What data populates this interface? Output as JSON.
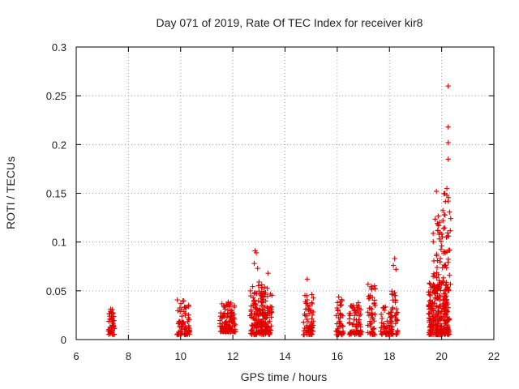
{
  "chart_data": {
    "type": "scatter",
    "title": "Day 071 of 2019, Rate Of TEC Index for receiver kir8",
    "xlabel": "GPS time / hours",
    "ylabel": "ROTI / TECUs",
    "xlim": [
      6,
      22
    ],
    "ylim": [
      0,
      0.3
    ],
    "xticks": [
      "6",
      "8",
      "10",
      "12",
      "14",
      "16",
      "18",
      "20",
      "22"
    ],
    "yticks": [
      "0",
      "0.05",
      "0.1",
      "0.15",
      "0.2",
      "0.25",
      "0.3"
    ],
    "xtick_values": [
      6,
      8,
      10,
      12,
      14,
      16,
      18,
      20,
      22
    ],
    "ytick_values": [
      0,
      0.05,
      0.1,
      0.15,
      0.2,
      0.25,
      0.3
    ],
    "grid": true,
    "marker": "plus",
    "series_color": "#e00000",
    "clusters": [
      {
        "x_center": 7.35,
        "x_spread": 0.12,
        "y_min": 0.005,
        "y_max": 0.032,
        "count": 45
      },
      {
        "x_center": 10.1,
        "x_spread": 0.25,
        "y_min": 0.005,
        "y_max": 0.045,
        "count": 70
      },
      {
        "x_center": 11.8,
        "x_spread": 0.3,
        "y_min": 0.008,
        "y_max": 0.04,
        "count": 120
      },
      {
        "x_center": 12.9,
        "x_spread": 0.25,
        "y_min": 0.005,
        "y_max": 0.06,
        "count": 120
      },
      {
        "x_center": 13.3,
        "x_spread": 0.2,
        "y_min": 0.005,
        "y_max": 0.055,
        "count": 90
      },
      {
        "x_center": 14.9,
        "x_spread": 0.2,
        "y_min": 0.005,
        "y_max": 0.048,
        "count": 70
      },
      {
        "x_center": 16.1,
        "x_spread": 0.15,
        "y_min": 0.005,
        "y_max": 0.045,
        "count": 50
      },
      {
        "x_center": 16.7,
        "x_spread": 0.25,
        "y_min": 0.005,
        "y_max": 0.038,
        "count": 70
      },
      {
        "x_center": 17.3,
        "x_spread": 0.15,
        "y_min": 0.005,
        "y_max": 0.058,
        "count": 50
      },
      {
        "x_center": 17.9,
        "x_spread": 0.25,
        "y_min": 0.005,
        "y_max": 0.035,
        "count": 60
      },
      {
        "x_center": 18.2,
        "x_spread": 0.12,
        "y_min": 0.005,
        "y_max": 0.05,
        "count": 30
      },
      {
        "x_center": 19.9,
        "x_spread": 0.4,
        "y_min": 0.005,
        "y_max": 0.06,
        "count": 260
      },
      {
        "x_center": 20.0,
        "x_spread": 0.35,
        "y_min": 0.05,
        "y_max": 0.15,
        "count": 80
      }
    ],
    "outliers": [
      [
        12.85,
        0.091
      ],
      [
        12.9,
        0.089
      ],
      [
        12.82,
        0.078
      ],
      [
        12.95,
        0.073
      ],
      [
        13.35,
        0.068
      ],
      [
        14.85,
        0.062
      ],
      [
        18.2,
        0.083
      ],
      [
        18.15,
        0.076
      ],
      [
        18.25,
        0.072
      ],
      [
        18.2,
        0.048
      ],
      [
        18.1,
        0.046
      ],
      [
        20.25,
        0.26
      ],
      [
        20.25,
        0.218
      ],
      [
        20.25,
        0.202
      ],
      [
        20.25,
        0.185
      ],
      [
        20.2,
        0.155
      ],
      [
        19.8,
        0.152
      ],
      [
        20.2,
        0.148
      ],
      [
        20.25,
        0.142
      ],
      [
        20.1,
        0.128
      ],
      [
        20.05,
        0.122
      ],
      [
        19.85,
        0.112
      ],
      [
        19.9,
        0.108
      ],
      [
        20.0,
        0.096
      ],
      [
        20.2,
        0.09
      ],
      [
        19.95,
        0.083
      ],
      [
        20.15,
        0.076
      ],
      [
        20.3,
        0.066
      ]
    ]
  }
}
